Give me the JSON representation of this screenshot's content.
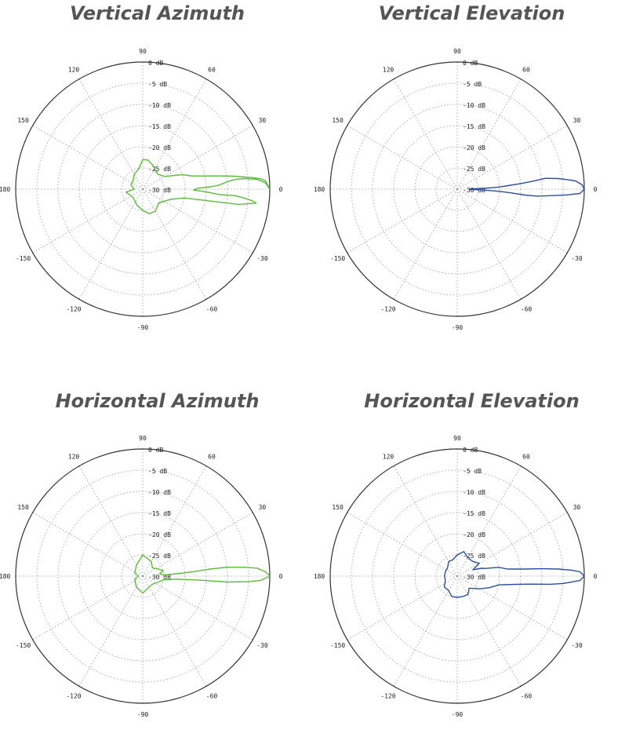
{
  "chart_data": [
    {
      "type": "polar",
      "title": "Vertical Azimuth",
      "color": "#5dbb3c",
      "angle_ticks": [
        "0",
        "30",
        "60",
        "90",
        "120",
        "150",
        "180",
        "-150",
        "-120",
        "-90",
        "-60",
        "-30"
      ],
      "radial_ticks": [
        "0 dB",
        "-5 dB",
        "-10 dB",
        "-15 dB",
        "-20 dB",
        "-25 dB",
        "-30 dB"
      ],
      "r_range_db": [
        -30,
        0
      ],
      "grid": true,
      "series": [
        {
          "points": [
            [
              0,
              0
            ],
            [
              3,
              -1
            ],
            [
              5,
              -3
            ],
            [
              6,
              -6
            ],
            [
              6,
              -8
            ],
            [
              5,
              -10
            ],
            [
              4,
              -11
            ],
            [
              3,
              -12
            ],
            [
              2,
              -14
            ],
            [
              1,
              -17
            ],
            [
              -1,
              -18
            ],
            [
              -2,
              -16
            ],
            [
              -3,
              -14
            ],
            [
              -4,
              -12
            ],
            [
              -4,
              -8
            ],
            [
              -5,
              -6
            ],
            [
              -6,
              -4
            ],
            [
              -7,
              -3
            ],
            [
              -9,
              -7
            ],
            [
              -12,
              -20
            ],
            [
              -20,
              -23
            ],
            [
              -40,
              -25
            ],
            [
              -60,
              -24
            ],
            [
              -75,
              -24
            ],
            [
              -90,
              -25
            ],
            [
              -110,
              -26
            ],
            [
              -140,
              -27
            ],
            [
              -170,
              -26
            ],
            [
              180,
              -28
            ],
            [
              160,
              -27
            ],
            [
              140,
              -27
            ],
            [
              120,
              -26
            ],
            [
              100,
              -25
            ],
            [
              90,
              -23
            ],
            [
              80,
              -23
            ],
            [
              65,
              -24
            ],
            [
              45,
              -25
            ],
            [
              30,
              -24
            ],
            [
              20,
              -20
            ],
            [
              15,
              -18
            ],
            [
              12,
              -15
            ],
            [
              10,
              -12
            ],
            [
              8,
              -8
            ],
            [
              6,
              -4
            ],
            [
              5,
              -2
            ],
            [
              4,
              -1
            ],
            [
              2,
              -0.5
            ],
            [
              0,
              0
            ]
          ]
        }
      ]
    },
    {
      "type": "polar",
      "title": "Vertical Elevation",
      "color": "#2c4ea0",
      "angle_ticks": [
        "0",
        "30",
        "60",
        "90",
        "120",
        "150",
        "180",
        "-150",
        "-120",
        "-90",
        "-60",
        "-30"
      ],
      "radial_ticks": [
        "0 dB",
        "-5 dB",
        "-10 dB",
        "-15 dB",
        "-20 dB",
        "-25 dB",
        "-30 dB"
      ],
      "r_range_db": [
        -30,
        0
      ],
      "grid": true,
      "series": [
        {
          "points": [
            [
              0,
              0
            ],
            [
              2,
              -0.5
            ],
            [
              4,
              -2
            ],
            [
              5,
              -4
            ],
            [
              6,
              -6
            ],
            [
              7,
              -9
            ],
            [
              6,
              -12
            ],
            [
              5,
              -15
            ],
            [
              4,
              -18
            ],
            [
              3,
              -20
            ],
            [
              2,
              -23
            ],
            [
              1,
              -27
            ],
            [
              -1,
              -27
            ],
            [
              -2,
              -24
            ],
            [
              -3,
              -20
            ],
            [
              -4,
              -17
            ],
            [
              -5,
              -14
            ],
            [
              -5,
              -11
            ],
            [
              -4,
              -8
            ],
            [
              -3,
              -4
            ],
            [
              -2,
              -1
            ],
            [
              0,
              0
            ]
          ]
        }
      ]
    },
    {
      "type": "polar",
      "title": "Horizontal Azimuth",
      "color": "#5dbb3c",
      "angle_ticks": [
        "0",
        "30",
        "60",
        "90",
        "120",
        "150",
        "180",
        "-150",
        "-120",
        "-90",
        "-60",
        "-30"
      ],
      "radial_ticks": [
        "0 dB",
        "-5 dB",
        "-10 dB",
        "-15 dB",
        "-20 dB",
        "-25 dB",
        "-30 dB"
      ],
      "r_range_db": [
        -30,
        0
      ],
      "grid": true,
      "series": [
        {
          "points": [
            [
              0,
              0
            ],
            [
              2,
              -1
            ],
            [
              4,
              -3
            ],
            [
              5,
              -6
            ],
            [
              6,
              -10
            ],
            [
              6,
              -14
            ],
            [
              5,
              -18
            ],
            [
              4,
              -22
            ],
            [
              3,
              -25
            ],
            [
              8,
              -26
            ],
            [
              15,
              -25
            ],
            [
              25,
              -26
            ],
            [
              40,
              -27
            ],
            [
              60,
              -26
            ],
            [
              90,
              -25
            ],
            [
              120,
              -27
            ],
            [
              160,
              -28
            ],
            [
              180,
              -29
            ],
            [
              -160,
              -28
            ],
            [
              -120,
              -27
            ],
            [
              -90,
              -26
            ],
            [
              -60,
              -27
            ],
            [
              -40,
              -27
            ],
            [
              -20,
              -26
            ],
            [
              -10,
              -25
            ],
            [
              -5,
              -22
            ],
            [
              -4,
              -16
            ],
            [
              -4,
              -10
            ],
            [
              -3,
              -5
            ],
            [
              -2,
              -2
            ],
            [
              0,
              0
            ]
          ]
        }
      ]
    },
    {
      "type": "polar",
      "title": "Horizontal Elevation",
      "color": "#2c4ea0",
      "angle_ticks": [
        "0",
        "30",
        "60",
        "90",
        "120",
        "150",
        "180",
        "-150",
        "-120",
        "-90",
        "-60",
        "-30"
      ],
      "radial_ticks": [
        "0 dB",
        "-5 dB",
        "-10 dB",
        "-15 dB",
        "-20 dB",
        "-25 dB",
        "-30 dB"
      ],
      "r_range_db": [
        -30,
        0
      ],
      "grid": true,
      "series": [
        {
          "points": [
            [
              0,
              0
            ],
            [
              2,
              -1
            ],
            [
              3,
              -3
            ],
            [
              4,
              -6
            ],
            [
              5,
              -10
            ],
            [
              6,
              -14
            ],
            [
              8,
              -18
            ],
            [
              12,
              -20
            ],
            [
              15,
              -23
            ],
            [
              18,
              -24
            ],
            [
              22,
              -26
            ],
            [
              30,
              -24
            ],
            [
              45,
              -25
            ],
            [
              60,
              -25
            ],
            [
              75,
              -24
            ],
            [
              90,
              -25
            ],
            [
              105,
              -26
            ],
            [
              120,
              -26
            ],
            [
              140,
              -27
            ],
            [
              160,
              -27
            ],
            [
              180,
              -27
            ],
            [
              -160,
              -27
            ],
            [
              -140,
              -26
            ],
            [
              -120,
              -26
            ],
            [
              -105,
              -25
            ],
            [
              -90,
              -25
            ],
            [
              -75,
              -25
            ],
            [
              -60,
              -25
            ],
            [
              -45,
              -26
            ],
            [
              -30,
              -24
            ],
            [
              -20,
              -22
            ],
            [
              -12,
              -20
            ],
            [
              -8,
              -16
            ],
            [
              -6,
              -12
            ],
            [
              -5,
              -8
            ],
            [
              -4,
              -5
            ],
            [
              -3,
              -3
            ],
            [
              -2,
              -1
            ],
            [
              0,
              0
            ]
          ]
        }
      ]
    }
  ]
}
